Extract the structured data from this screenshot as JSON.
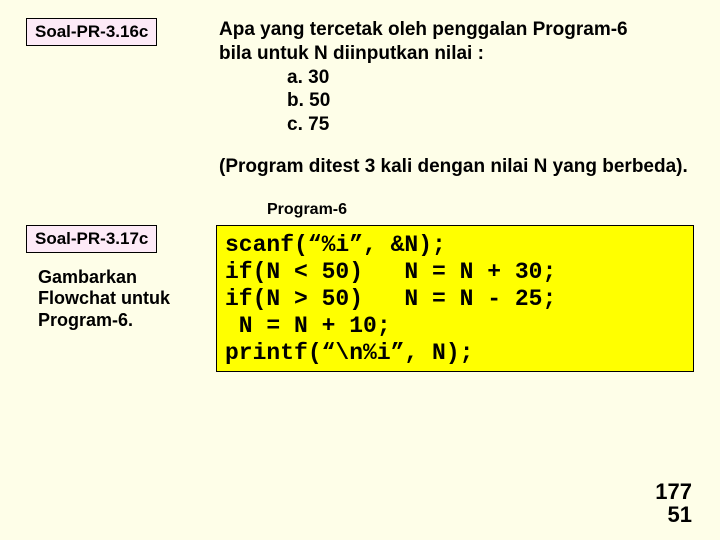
{
  "badge1": "Soal-PR-3.16c",
  "questionLine1": "Apa yang tercetak oleh penggalan Program-6",
  "questionLine2": "bila untuk  N diinputkan nilai :",
  "opts": [
    "a.  30",
    "b.  50",
    "c.  75"
  ],
  "paren": "(Program ditest 3 kali dengan nilai N yang berbeda).",
  "progLabel": "Program-6",
  "badge2": "Soal-PR-3.17c",
  "desc": "Gambarkan Flowchat untuk Program-6.",
  "code": "scanf(“%i”, &N);\nif(N < 50)   N = N + 30;\nif(N > 50)   N = N - 25;\n N = N + 10;\nprintf(“\\n%i”, N);",
  "pnum1": "177",
  "pnum2": "51",
  "colors": {
    "bg": "#fefee8",
    "badgeBg": "#fdeaf7",
    "codeBg": "#ffff00",
    "border": "#000000",
    "text": "#000000"
  }
}
